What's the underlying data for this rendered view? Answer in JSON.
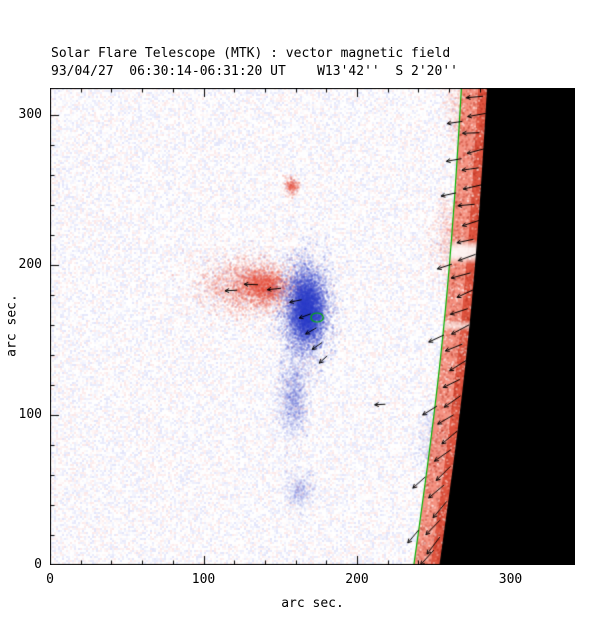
{
  "header": {
    "title": "Solar Flare Telescope (MTK) : vector magnetic field",
    "subtitle": "93/04/27  06:30:14-06:31:20 UT    W13'42''  S 2'20''"
  },
  "chart_data": {
    "type": "heatmap",
    "title": "Solar Flare Telescope (MTK) : vector magnetic field",
    "subtitle": "93/04/27  06:30:14-06:31:20 UT    W13'42''  S 2'20''",
    "xlabel": "arc sec.",
    "ylabel": "arc sec.",
    "xlim": [
      0,
      342
    ],
    "ylim": [
      0,
      318
    ],
    "xticks": [
      0,
      100,
      200,
      300
    ],
    "yticks": [
      0,
      100,
      200,
      300
    ],
    "minor_per_major": 5,
    "colors": {
      "background": "#ffffff",
      "frame": "#000000",
      "positive": "#e84632",
      "negative": "#3040cc",
      "noise_blue": "#96a0f0",
      "noise_red": "#f4a0a0",
      "contour_green": "#00b400",
      "limb_black": "#000000",
      "band_base": "#f5836e",
      "band_inner": "#da4530",
      "band_dark_dot": "#a81e0e",
      "vector": "#000000"
    },
    "noise": {
      "cell": 2,
      "blue_frac": 0.4,
      "red_frac": 0.3,
      "max_alpha": 0.28
    },
    "blobs": [
      {
        "name": "positive-plage",
        "polarity": "positive",
        "cx": 127,
        "cy": 187,
        "sx": 16,
        "sy": 10,
        "n": 2600,
        "alpha": 0.1
      },
      {
        "name": "positive-plage-core",
        "polarity": "positive",
        "cx": 139,
        "cy": 186,
        "sx": 8,
        "sy": 6,
        "n": 1500,
        "alpha": 0.15
      },
      {
        "name": "negative-spot-main",
        "polarity": "negative",
        "cx": 166,
        "cy": 172,
        "sx": 8,
        "sy": 16,
        "n": 5200,
        "alpha": 0.12
      },
      {
        "name": "negative-spot-core",
        "polarity": "negative",
        "cx": 167,
        "cy": 170,
        "sx": 5,
        "sy": 10,
        "n": 2600,
        "alpha": 0.2
      },
      {
        "name": "negative-tail-south",
        "polarity": "negative",
        "cx": 158,
        "cy": 112,
        "sx": 5,
        "sy": 14,
        "n": 1500,
        "alpha": 0.08
      },
      {
        "name": "negative-footpoint-south",
        "polarity": "negative",
        "cx": 162,
        "cy": 50,
        "sx": 5,
        "sy": 7,
        "n": 520,
        "alpha": 0.07
      },
      {
        "name": "small-positive-north",
        "polarity": "positive",
        "cx": 157,
        "cy": 253,
        "sx": 2.5,
        "sy": 3,
        "n": 240,
        "alpha": 0.14
      },
      {
        "name": "faint-plage-near-limb-mid",
        "polarity": "positive",
        "cx": 258,
        "cy": 218,
        "sx": 5,
        "sy": 15,
        "n": 700,
        "alpha": 0.08
      },
      {
        "name": "faint-plage-near-limb-north",
        "polarity": "positive",
        "cx": 266,
        "cy": 300,
        "sx": 5,
        "sy": 12,
        "n": 600,
        "alpha": 0.08
      },
      {
        "name": "faint-negative-near-limb",
        "polarity": "negative",
        "cx": 249,
        "cy": 82,
        "sx": 5,
        "sy": 12,
        "n": 520,
        "alpha": 0.07
      }
    ],
    "limb": {
      "edge_top_x": 285,
      "edge_bottom_x": 254,
      "bulge": 4,
      "band_width": 17,
      "inner_width": 6,
      "contour_offset": 17,
      "band_dots": 2600,
      "gaps": [
        {
          "y": 209,
          "h": 16,
          "strength": 0.75
        },
        {
          "y": 160,
          "h": 7,
          "strength": 0.4
        }
      ]
    },
    "neutral_line_contour": {
      "cx": 174,
      "cy": 165,
      "rx": 4,
      "ry": 3
    },
    "vectors": {
      "limb": [
        [
          312,
          -8,
          185,
          11
        ],
        [
          300,
          -6,
          190,
          12
        ],
        [
          295,
          -20,
          188,
          10
        ],
        [
          288,
          -9,
          182,
          11
        ],
        [
          276,
          -5,
          195,
          12
        ],
        [
          270,
          -19,
          190,
          10
        ],
        [
          264,
          -8,
          188,
          11
        ],
        [
          252,
          -6,
          193,
          12
        ],
        [
          247,
          -21,
          192,
          10
        ],
        [
          240,
          -9,
          185,
          11
        ],
        [
          228,
          -5,
          198,
          12
        ],
        [
          216,
          -8,
          192,
          11
        ],
        [
          205,
          -6,
          200,
          12
        ],
        [
          199,
          -20,
          198,
          10
        ],
        [
          193,
          -9,
          195,
          13
        ],
        [
          181,
          -5,
          205,
          12
        ],
        [
          169,
          -8,
          198,
          12
        ],
        [
          157,
          -6,
          208,
          13
        ],
        [
          151,
          -21,
          205,
          11
        ],
        [
          145,
          -9,
          202,
          12
        ],
        [
          133,
          -5,
          212,
          13
        ],
        [
          121,
          -8,
          206,
          12
        ],
        [
          109,
          -6,
          215,
          13
        ],
        [
          103,
          -20,
          212,
          11
        ],
        [
          97,
          -9,
          210,
          12
        ],
        [
          85,
          -5,
          220,
          13
        ],
        [
          73,
          -8,
          215,
          13
        ],
        [
          61,
          -6,
          225,
          13
        ],
        [
          55,
          -21,
          222,
          11
        ],
        [
          49,
          -9,
          220,
          13
        ],
        [
          37,
          -5,
          230,
          14
        ],
        [
          25,
          -8,
          226,
          13
        ],
        [
          19,
          -20,
          230,
          11
        ],
        [
          13,
          -6,
          233,
          14
        ],
        [
          5,
          -9,
          228,
          13
        ]
      ],
      "field": [
        [
          118,
          183,
          183,
          8
        ],
        [
          131,
          187,
          178,
          9
        ],
        [
          146,
          184,
          186,
          9
        ],
        [
          160,
          176,
          192,
          8
        ],
        [
          166,
          166,
          200,
          8
        ],
        [
          170,
          156,
          210,
          8
        ],
        [
          174,
          146,
          215,
          8
        ],
        [
          178,
          137,
          222,
          7
        ],
        [
          215,
          107,
          183,
          7
        ]
      ]
    }
  }
}
